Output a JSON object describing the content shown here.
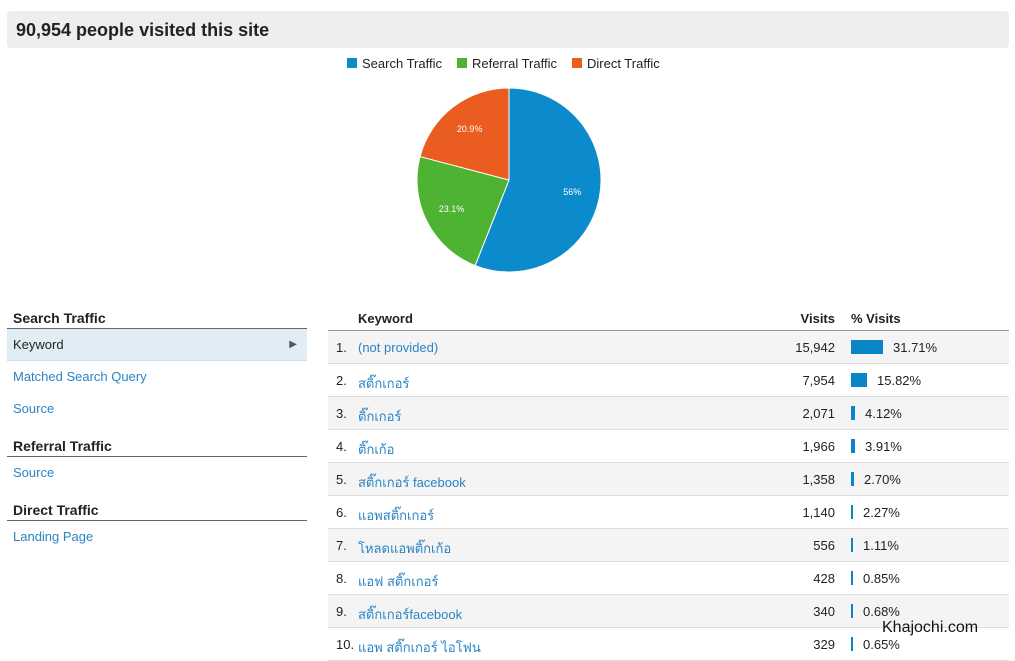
{
  "header": {
    "title": "90,954 people visited this site"
  },
  "legend": [
    {
      "label": "Search Traffic",
      "color": "#0b8bcb"
    },
    {
      "label": "Referral Traffic",
      "color": "#4eb332"
    },
    {
      "label": "Direct Traffic",
      "color": "#ea5c1f"
    }
  ],
  "chart_data": {
    "type": "pie",
    "slices": [
      {
        "label": "Search Traffic",
        "value": 56,
        "display": "56%",
        "color": "#0b8bcb"
      },
      {
        "label": "Referral Traffic",
        "value": 23.1,
        "display": "23.1%",
        "color": "#4eb332"
      },
      {
        "label": "Direct Traffic",
        "value": 20.9,
        "display": "20.9%",
        "color": "#ea5c1f"
      }
    ]
  },
  "sidebar": {
    "search_heading": "Search Traffic",
    "keyword": "Keyword",
    "matched_query": "Matched Search Query",
    "search_source": "Source",
    "referral_heading": "Referral Traffic",
    "referral_source": "Source",
    "direct_heading": "Direct Traffic",
    "landing_page": "Landing Page"
  },
  "table": {
    "headers": {
      "keyword": "Keyword",
      "visits": "Visits",
      "pct": "% Visits"
    },
    "rows": [
      {
        "num": "1.",
        "keyword": "(not provided)",
        "visits": "15,942",
        "pct": "31.71%",
        "share": 0.3171
      },
      {
        "num": "2.",
        "keyword": "สติ๊กเกอร์",
        "visits": "7,954",
        "pct": "15.82%",
        "share": 0.1582
      },
      {
        "num": "3.",
        "keyword": "ติ๊กเกอร์",
        "visits": "2,071",
        "pct": "4.12%",
        "share": 0.0412
      },
      {
        "num": "4.",
        "keyword": "ติ๊กเก้อ",
        "visits": "1,966",
        "pct": "3.91%",
        "share": 0.0391
      },
      {
        "num": "5.",
        "keyword": "สติ๊กเกอร์ facebook",
        "visits": "1,358",
        "pct": "2.70%",
        "share": 0.027
      },
      {
        "num": "6.",
        "keyword": "แอพสติ๊กเกอร์",
        "visits": "1,140",
        "pct": "2.27%",
        "share": 0.0227
      },
      {
        "num": "7.",
        "keyword": "โหลดแอพติ๊กเก้อ",
        "visits": "556",
        "pct": "1.11%",
        "share": 0.0111
      },
      {
        "num": "8.",
        "keyword": "แอฟ สติ๊กเกอร์",
        "visits": "428",
        "pct": "0.85%",
        "share": 0.0085
      },
      {
        "num": "9.",
        "keyword": "สติ๊กเกอร์facebook",
        "visits": "340",
        "pct": "0.68%",
        "share": 0.0068
      },
      {
        "num": "10.",
        "keyword": "แอพ สติ๊กเกอร์ ไอโฟน",
        "visits": "329",
        "pct": "0.65%",
        "share": 0.0065
      }
    ]
  },
  "watermark": "Khajochi.com"
}
